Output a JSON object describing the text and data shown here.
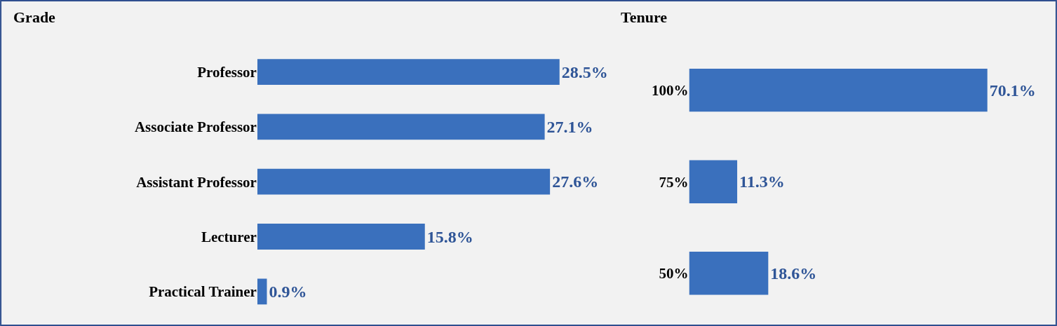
{
  "chart_data": [
    {
      "type": "bar",
      "title": "Grade",
      "orientation": "horizontal",
      "categories": [
        "Professor",
        "Associate Professor",
        "Assistant Professor",
        "Lecturer",
        "Practical Trainer"
      ],
      "values": [
        28.5,
        27.1,
        27.6,
        15.8,
        0.9
      ],
      "color": "#3a70bd",
      "value_labels": [
        "28.5%",
        "27.1%",
        "27.6%",
        "15.8%",
        "0.9%"
      ],
      "tick_labels": "y",
      "grid": false
    },
    {
      "type": "bar",
      "title": "Tenure",
      "orientation": "horizontal",
      "categories": [
        "100%",
        "75%",
        "50%"
      ],
      "values": [
        70.1,
        11.3,
        18.6
      ],
      "color": "#3a70bd",
      "value_labels": [
        "70.1%",
        "11.3%",
        "18.6%"
      ],
      "tick_labels": "y",
      "grid": false
    }
  ]
}
